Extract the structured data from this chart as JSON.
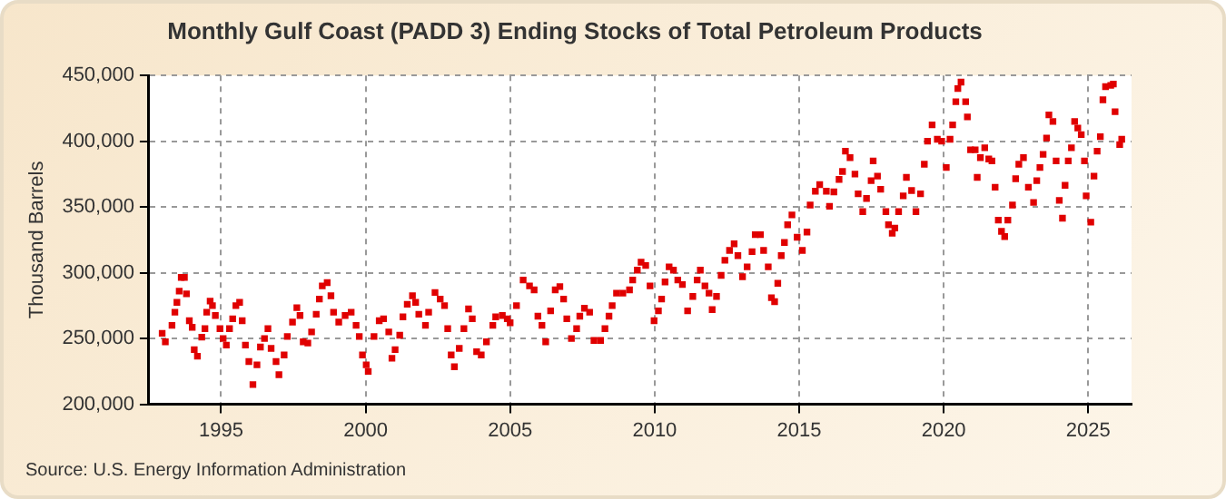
{
  "chart_data": {
    "type": "scatter",
    "title": "Monthly Gulf Coast (PADD 3) Ending Stocks of Total Petroleum Products",
    "ylabel": "Thousand Barrels",
    "annotations": [
      "Source: U.S. Energy Information Administration"
    ],
    "x": [
      1992.96,
      1993.07,
      1993.3,
      1993.4,
      1993.47,
      1993.55,
      1993.62,
      1993.73,
      1993.8,
      1993.9,
      1994.0,
      1994.07,
      1994.18,
      1994.33,
      1994.44,
      1994.5,
      1994.62,
      1994.7,
      1994.8,
      1994.96,
      1995.07,
      1995.18,
      1995.29,
      1995.4,
      1995.51,
      1995.64,
      1995.73,
      1995.84,
      1995.96,
      1996.1,
      1996.24,
      1996.36,
      1996.5,
      1996.62,
      1996.73,
      1996.9,
      1997.0,
      1997.18,
      1997.29,
      1997.47,
      1997.62,
      1997.73,
      1997.84,
      1998.0,
      1998.13,
      1998.29,
      1998.4,
      1998.5,
      1998.67,
      1998.8,
      1998.89,
      1999.07,
      1999.29,
      1999.5,
      1999.67,
      1999.78,
      1999.89,
      2000.02,
      2000.09,
      2000.29,
      2000.47,
      2000.62,
      2000.8,
      2000.91,
      2001.02,
      2001.18,
      2001.29,
      2001.44,
      2001.62,
      2001.73,
      2001.84,
      2002.07,
      2002.18,
      2002.4,
      2002.58,
      2002.73,
      2002.84,
      2002.96,
      2003.07,
      2003.24,
      2003.4,
      2003.56,
      2003.69,
      2003.84,
      2004.0,
      2004.18,
      2004.4,
      2004.5,
      2004.73,
      2004.9,
      2005.0,
      2005.22,
      2005.45,
      2005.67,
      2005.83,
      2005.96,
      2006.1,
      2006.23,
      2006.4,
      2006.56,
      2006.72,
      2006.85,
      2006.96,
      2007.12,
      2007.3,
      2007.41,
      2007.57,
      2007.75,
      2007.9,
      2008.13,
      2008.28,
      2008.42,
      2008.53,
      2008.68,
      2008.9,
      2009.13,
      2009.24,
      2009.4,
      2009.53,
      2009.69,
      2009.84,
      2009.98,
      2010.13,
      2010.24,
      2010.36,
      2010.5,
      2010.65,
      2010.8,
      2010.96,
      2011.14,
      2011.32,
      2011.47,
      2011.58,
      2011.74,
      2011.88,
      2011.99,
      2012.14,
      2012.3,
      2012.43,
      2012.59,
      2012.75,
      2012.88,
      2013.04,
      2013.2,
      2013.37,
      2013.48,
      2013.66,
      2013.77,
      2013.93,
      2014.04,
      2014.15,
      2014.26,
      2014.38,
      2014.49,
      2014.6,
      2014.75,
      2014.93,
      2015.11,
      2015.27,
      2015.38,
      2015.56,
      2015.71,
      2015.94,
      2016.05,
      2016.2,
      2016.38,
      2016.5,
      2016.6,
      2016.76,
      2016.93,
      2017.04,
      2017.2,
      2017.33,
      2017.49,
      2017.56,
      2017.71,
      2017.82,
      2018.0,
      2018.09,
      2018.22,
      2018.31,
      2018.44,
      2018.6,
      2018.71,
      2018.89,
      2019.04,
      2019.2,
      2019.33,
      2019.44,
      2019.6,
      2019.78,
      2019.93,
      2020.09,
      2020.22,
      2020.31,
      2020.42,
      2020.49,
      2020.6,
      2020.76,
      2020.82,
      2020.93,
      2021.09,
      2021.16,
      2021.27,
      2021.42,
      2021.56,
      2021.67,
      2021.78,
      2021.89,
      2022.0,
      2022.11,
      2022.22,
      2022.38,
      2022.49,
      2022.6,
      2022.76,
      2022.93,
      2023.11,
      2023.22,
      2023.33,
      2023.44,
      2023.56,
      2023.64,
      2023.78,
      2023.89,
      2024.0,
      2024.11,
      2024.2,
      2024.31,
      2024.42,
      2024.53,
      2024.64,
      2024.76,
      2024.87,
      2024.93,
      2025.09,
      2025.2,
      2025.31,
      2025.42,
      2025.51,
      2025.6,
      2025.78,
      2025.87,
      2025.93,
      2026.09,
      2026.16
    ],
    "series": [
      {
        "color": "#e00000",
        "values": [
          254000,
          247500,
          260000,
          270000,
          277500,
          286000,
          296500,
          296500,
          284000,
          263500,
          258500,
          241500,
          236500,
          251000,
          257500,
          270000,
          278500,
          275000,
          267500,
          257500,
          250000,
          245000,
          257500,
          265000,
          275000,
          277500,
          263500,
          245000,
          232500,
          215000,
          230000,
          243500,
          250000,
          257500,
          242500,
          232500,
          222500,
          237500,
          251500,
          262500,
          273500,
          267500,
          247500,
          246500,
          255000,
          268500,
          280000,
          290000,
          292500,
          282500,
          270000,
          262500,
          267500,
          270000,
          260000,
          251500,
          237500,
          230000,
          225000,
          251500,
          263500,
          265000,
          255000,
          235000,
          241500,
          252500,
          266500,
          276000,
          282500,
          277500,
          268500,
          260000,
          270000,
          285000,
          280000,
          275000,
          257500,
          237500,
          228500,
          242500,
          257500,
          272500,
          265000,
          240000,
          237500,
          247500,
          260000,
          266500,
          267500,
          265000,
          262000,
          275000,
          294500,
          290000,
          287000,
          267000,
          260000,
          247500,
          271000,
          287000,
          289500,
          280000,
          265000,
          250000,
          257500,
          267000,
          273000,
          270000,
          248500,
          248500,
          257500,
          267000,
          275000,
          284500,
          284500,
          287000,
          294500,
          302000,
          308000,
          305500,
          290000,
          263500,
          271000,
          280000,
          293000,
          304500,
          302000,
          294500,
          291000,
          271000,
          282000,
          294500,
          302000,
          290000,
          284500,
          272000,
          282000,
          298000,
          309500,
          317000,
          322000,
          313000,
          297000,
          304500,
          316000,
          329000,
          329000,
          317000,
          304500,
          281000,
          278000,
          292000,
          313000,
          323000,
          336500,
          344000,
          327000,
          317000,
          331000,
          351500,
          362000,
          367000,
          362000,
          350500,
          361500,
          371000,
          377000,
          392500,
          387500,
          375000,
          360000,
          346500,
          356500,
          370000,
          385000,
          373500,
          363500,
          346500,
          336500,
          330000,
          334000,
          346500,
          358500,
          372500,
          362500,
          346500,
          360000,
          382500,
          400000,
          412500,
          401500,
          400000,
          380000,
          401500,
          412500,
          430000,
          440000,
          445000,
          430000,
          418500,
          393500,
          393500,
          372500,
          387500,
          395000,
          386500,
          385000,
          365000,
          340000,
          331500,
          327500,
          340000,
          351500,
          371500,
          382500,
          387500,
          365000,
          353500,
          370000,
          380000,
          390000,
          402500,
          420000,
          415000,
          385000,
          355000,
          341500,
          366500,
          385000,
          395000,
          415000,
          410000,
          405000,
          385000,
          358500,
          338500,
          373500,
          392500,
          403500,
          431500,
          441500,
          442500,
          443500,
          422500,
          397500,
          401500
        ]
      }
    ],
    "xlim": [
      1992.5,
      2026.5
    ],
    "xticks": [
      1995,
      2000,
      2005,
      2010,
      2015,
      2020,
      2025
    ],
    "ylim": [
      200000,
      450000
    ],
    "yticks": [
      {
        "value": 200000,
        "label": "200,000"
      },
      {
        "value": 250000,
        "label": "250,000"
      },
      {
        "value": 300000,
        "label": "300,000"
      },
      {
        "value": 350000,
        "label": "350,000"
      },
      {
        "value": 400000,
        "label": "400,000"
      },
      {
        "value": 450000,
        "label": "450,000"
      }
    ],
    "grid": true,
    "legend": false,
    "marker": "square"
  }
}
